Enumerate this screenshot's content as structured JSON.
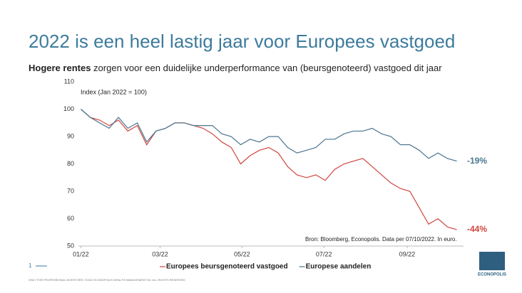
{
  "chart_data": {
    "type": "line",
    "title": "2022 is een heel lastig jaar voor Europees vastgoed",
    "subtitle_bold": "Hogere rentes",
    "subtitle": "zorgen voor een duidelijke underperformance van (beursgenoteerd) vastgoed dit jaar",
    "y_label": "Index (Jan 2022 = 100)",
    "source": "Bron: Bloomberg, Econopolis. Data per 07/10/2022. In euro.",
    "x": [
      0,
      7,
      14,
      21,
      28,
      35,
      42,
      49,
      56,
      63,
      70,
      77,
      84,
      91,
      98,
      105,
      112,
      119,
      126,
      133,
      140,
      147,
      154,
      161,
      168,
      175,
      182,
      189,
      196,
      203,
      210,
      217,
      224,
      231,
      238,
      245,
      252,
      259,
      266,
      273,
      280
    ],
    "xlim": [
      -5,
      285
    ],
    "xticks": [
      {
        "value": 0,
        "label": "01/22"
      },
      {
        "value": 59,
        "label": "03/22"
      },
      {
        "value": 120,
        "label": "05/22"
      },
      {
        "value": 181,
        "label": "07/22"
      },
      {
        "value": 243,
        "label": "09/22"
      }
    ],
    "ylim": [
      50,
      110
    ],
    "yticks": [
      50,
      60,
      70,
      80,
      90,
      100,
      110
    ],
    "series": [
      {
        "name": "Europees beursgenoteerd vastgoed",
        "color": "#d0463f",
        "end_label": "-44%",
        "values": [
          100,
          97,
          96,
          94,
          96,
          92,
          94,
          87,
          92,
          93,
          95,
          95,
          94,
          93,
          91,
          88,
          86,
          80,
          83,
          85,
          86,
          84,
          79,
          76,
          75,
          76,
          74,
          78,
          80,
          81,
          82,
          79,
          76,
          73,
          71,
          70,
          64,
          58,
          60,
          57,
          56
        ]
      },
      {
        "name": "Europese aandelen",
        "color": "#4a7690",
        "end_label": "-19%",
        "values": [
          100,
          97,
          95,
          93,
          97,
          93,
          95,
          88,
          92,
          93,
          95,
          95,
          94,
          94,
          94,
          91,
          90,
          87,
          89,
          88,
          90,
          90,
          86,
          84,
          85,
          86,
          89,
          89,
          91,
          92,
          92,
          93,
          91,
          90,
          87,
          87,
          85,
          82,
          84,
          82,
          81
        ]
      }
    ]
  },
  "footer": {
    "page": "1",
    "disclaimer": "ONLY FOR PROFESSIONAL INVESTORS. ©2022 ECONOPOLIS WEALTH MANAGEMENT NV. ALL RIGHTS RESERVED",
    "logo": "ECONOPOLIS"
  }
}
